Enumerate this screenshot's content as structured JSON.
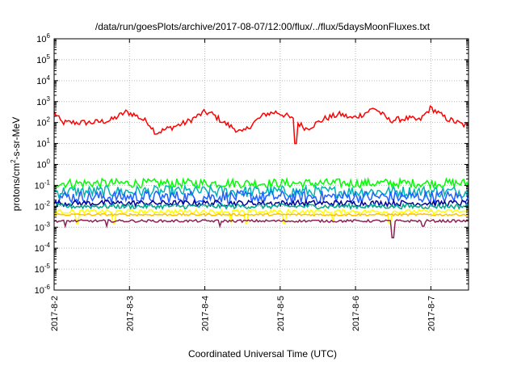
{
  "chart_data": {
    "type": "line",
    "title": "/data/run/goesPlots/archive/2017-08-07/12:00/flux/../flux/5daysMoonFluxes.txt",
    "xlabel": "Coordinated Universal Time (UTC)",
    "ylabel": {
      "prefix": "protons/cm",
      "sup": "2",
      "suffix": "-s-sr-MeV"
    },
    "x_start": "2017-08-02T00:00",
    "x_end": "2017-08-07T12:00",
    "x_ticks": [
      "2017-8-2",
      "2017-8-3",
      "2017-8-4",
      "2017-8-5",
      "2017-8-6",
      "2017-8-7"
    ],
    "y_scale": "log",
    "ylim": [
      1e-06,
      1000000.0
    ],
    "y_ticks": [
      {
        "base": "10",
        "exp": "-6"
      },
      {
        "base": "10",
        "exp": "-5"
      },
      {
        "base": "10",
        "exp": "-4"
      },
      {
        "base": "10",
        "exp": "-3"
      },
      {
        "base": "10",
        "exp": "-2"
      },
      {
        "base": "10",
        "exp": "-1"
      },
      {
        "base": "10",
        "exp": "0"
      },
      {
        "base": "10",
        "exp": "1"
      },
      {
        "base": "10",
        "exp": "2"
      },
      {
        "base": "10",
        "exp": "3"
      },
      {
        "base": "10",
        "exp": "4"
      },
      {
        "base": "10",
        "exp": "5"
      },
      {
        "base": "10",
        "exp": "6"
      }
    ],
    "grid": true,
    "series": [
      {
        "color": "#ff0000",
        "x_days": [
          0,
          0.1,
          0.25,
          0.5,
          0.75,
          0.95,
          1.05,
          1.25,
          1.35,
          1.5,
          1.75,
          2.0,
          2.1,
          2.25,
          2.5,
          2.65,
          2.8,
          2.95,
          3.1,
          3.35,
          3.6,
          3.8,
          3.95,
          4.1,
          4.25,
          4.45,
          4.7,
          4.85,
          5.0,
          5.2,
          5.35,
          5.5
        ],
        "y_log": [
          2.5,
          2.0,
          2.0,
          2.0,
          2.1,
          2.5,
          2.4,
          2.0,
          1.5,
          1.7,
          2.0,
          2.5,
          2.4,
          2.0,
          1.5,
          2.0,
          2.4,
          2.5,
          2.3,
          1.7,
          2.2,
          2.4,
          2.2,
          2.4,
          2.7,
          2.1,
          2.2,
          2.1,
          2.7,
          2.2,
          2.0,
          1.8
        ],
        "noise": 0.14,
        "dips": [
          [
            3.2,
            1.0
          ]
        ]
      },
      {
        "color": "#00ff00",
        "base_log": -0.9,
        "noise": 0.22
      },
      {
        "color": "#00b4b4",
        "base_log": -1.3,
        "noise": 0.28
      },
      {
        "color": "#2060ff",
        "base_log": -1.55,
        "noise": 0.3
      },
      {
        "color": "#000099",
        "base_log": -1.85,
        "noise": 0.14
      },
      {
        "color": "#00aa88",
        "base_log": -2.0,
        "noise": 0.12
      },
      {
        "color": "#ffff00",
        "base_log": -2.25,
        "noise": 0.1,
        "dips": [
          [
            0.3,
            -2.8
          ],
          [
            0.8,
            -2.8
          ],
          [
            2.35,
            -2.8
          ],
          [
            2.55,
            -2.8
          ],
          [
            3.05,
            -2.8
          ],
          [
            3.7,
            -2.8
          ],
          [
            4.45,
            -2.8
          ]
        ]
      },
      {
        "color": "#ffc000",
        "base_log": -2.4,
        "noise": 0.05
      },
      {
        "color": "#8b2252",
        "base_log": -2.7,
        "noise": 0.06,
        "dips": [
          [
            0.15,
            -2.95
          ],
          [
            0.7,
            -2.95
          ],
          [
            4.5,
            -3.5
          ],
          [
            4.9,
            -2.95
          ],
          [
            2.2,
            -2.95
          ]
        ]
      }
    ]
  }
}
